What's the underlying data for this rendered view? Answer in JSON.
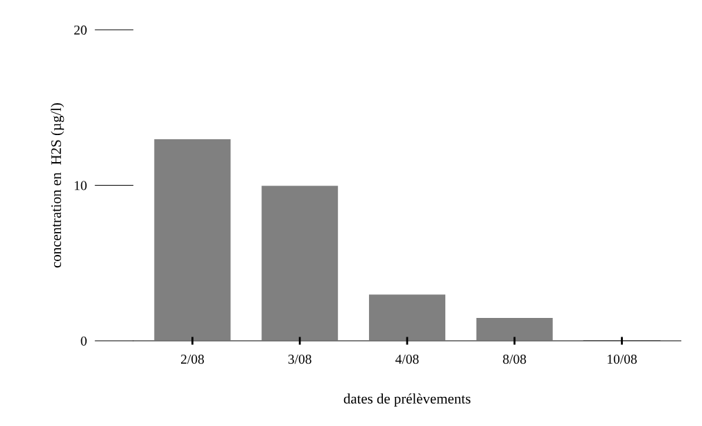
{
  "chart_data": {
    "type": "bar",
    "xlabel": "dates de prélèvements",
    "ylabel": "concentration en  H2S (µg/l)",
    "categories": [
      "2/08",
      "3/08",
      "4/08",
      "8/08",
      "10/08"
    ],
    "values": [
      13,
      10,
      3,
      1.5,
      0
    ],
    "color": "#808080",
    "ylim": [
      0,
      20
    ],
    "yticks": [
      0,
      10,
      20
    ],
    "grid": false
  }
}
